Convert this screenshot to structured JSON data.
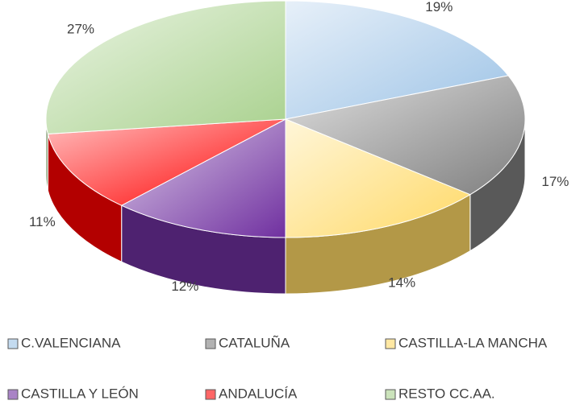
{
  "chart_data": {
    "type": "pie",
    "categories": [
      "C.VALENCIANA",
      "CATALUÑA",
      "CASTILLA-LA MANCHA",
      "CASTILLA Y LEÓN",
      "ANDALUCÍA",
      "RESTO CC.AA."
    ],
    "values": [
      19,
      17,
      14,
      12,
      11,
      27
    ],
    "value_labels": [
      "19%",
      "17%",
      "14%",
      "12%",
      "11%",
      "27%"
    ],
    "colors": [
      "#9dc3e6",
      "#7f7f7f",
      "#ffd966",
      "#7030a0",
      "#ff0000",
      "#a9d18e"
    ],
    "legend": "bottom"
  }
}
